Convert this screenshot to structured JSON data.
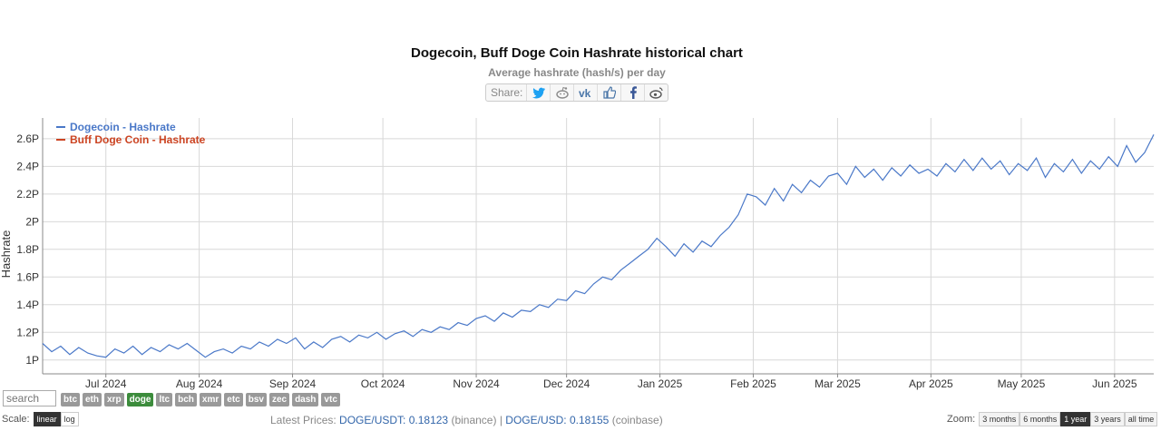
{
  "chart_data": {
    "type": "line",
    "title": "Dogecoin, Buff Doge Coin Hashrate historical chart",
    "subtitle": "Average hashrate (hash/s) per day",
    "ylabel": "Hashrate",
    "xlabel": "",
    "x_range": [
      "2024-06-10",
      "2025-06-14"
    ],
    "ylim": [
      0.9,
      2.75
    ],
    "y_ticks": [
      "1P",
      "1.2P",
      "1.4P",
      "1.6P",
      "1.8P",
      "2P",
      "2.2P",
      "2.4P",
      "2.6P"
    ],
    "y_tick_values": [
      1.0,
      1.2,
      1.4,
      1.6,
      1.8,
      2.0,
      2.2,
      2.4,
      2.6
    ],
    "x_ticks": [
      {
        "label": "Jul 2024",
        "date": "2024-07-01"
      },
      {
        "label": "Aug 2024",
        "date": "2024-08-01"
      },
      {
        "label": "Sep 2024",
        "date": "2024-09-01"
      },
      {
        "label": "Oct 2024",
        "date": "2024-10-01"
      },
      {
        "label": "Nov 2024",
        "date": "2024-11-01"
      },
      {
        "label": "Dec 2024",
        "date": "2024-12-01"
      },
      {
        "label": "Jan 2025",
        "date": "2025-01-01"
      },
      {
        "label": "Feb 2025",
        "date": "2025-02-01"
      },
      {
        "label": "Mar 2025",
        "date": "2025-03-01"
      },
      {
        "label": "Apr 2025",
        "date": "2025-04-01"
      },
      {
        "label": "May 2025",
        "date": "2025-05-01"
      },
      {
        "label": "Jun 2025",
        "date": "2025-06-01"
      }
    ],
    "grid": true,
    "legend_position": "top-left",
    "series": [
      {
        "name": "Dogecoin - Hashrate",
        "color": "#4a78c8",
        "points": [
          [
            "2024-06-10",
            1.12
          ],
          [
            "2024-06-13",
            1.06
          ],
          [
            "2024-06-16",
            1.1
          ],
          [
            "2024-06-19",
            1.04
          ],
          [
            "2024-06-22",
            1.09
          ],
          [
            "2024-06-25",
            1.05
          ],
          [
            "2024-06-28",
            1.03
          ],
          [
            "2024-07-01",
            1.02
          ],
          [
            "2024-07-04",
            1.08
          ],
          [
            "2024-07-07",
            1.05
          ],
          [
            "2024-07-10",
            1.1
          ],
          [
            "2024-07-13",
            1.04
          ],
          [
            "2024-07-16",
            1.09
          ],
          [
            "2024-07-19",
            1.06
          ],
          [
            "2024-07-22",
            1.11
          ],
          [
            "2024-07-25",
            1.08
          ],
          [
            "2024-07-28",
            1.12
          ],
          [
            "2024-07-31",
            1.07
          ],
          [
            "2024-08-03",
            1.02
          ],
          [
            "2024-08-06",
            1.06
          ],
          [
            "2024-08-09",
            1.08
          ],
          [
            "2024-08-12",
            1.05
          ],
          [
            "2024-08-15",
            1.1
          ],
          [
            "2024-08-18",
            1.08
          ],
          [
            "2024-08-21",
            1.13
          ],
          [
            "2024-08-24",
            1.1
          ],
          [
            "2024-08-27",
            1.15
          ],
          [
            "2024-08-30",
            1.12
          ],
          [
            "2024-09-02",
            1.16
          ],
          [
            "2024-09-05",
            1.08
          ],
          [
            "2024-09-08",
            1.13
          ],
          [
            "2024-09-11",
            1.09
          ],
          [
            "2024-09-14",
            1.15
          ],
          [
            "2024-09-17",
            1.17
          ],
          [
            "2024-09-20",
            1.13
          ],
          [
            "2024-09-23",
            1.18
          ],
          [
            "2024-09-26",
            1.16
          ],
          [
            "2024-09-29",
            1.2
          ],
          [
            "2024-10-02",
            1.15
          ],
          [
            "2024-10-05",
            1.19
          ],
          [
            "2024-10-08",
            1.21
          ],
          [
            "2024-10-11",
            1.17
          ],
          [
            "2024-10-14",
            1.22
          ],
          [
            "2024-10-17",
            1.2
          ],
          [
            "2024-10-20",
            1.24
          ],
          [
            "2024-10-23",
            1.22
          ],
          [
            "2024-10-26",
            1.27
          ],
          [
            "2024-10-29",
            1.25
          ],
          [
            "2024-11-01",
            1.3
          ],
          [
            "2024-11-04",
            1.32
          ],
          [
            "2024-11-07",
            1.28
          ],
          [
            "2024-11-10",
            1.34
          ],
          [
            "2024-11-13",
            1.31
          ],
          [
            "2024-11-16",
            1.36
          ],
          [
            "2024-11-19",
            1.35
          ],
          [
            "2024-11-22",
            1.4
          ],
          [
            "2024-11-25",
            1.38
          ],
          [
            "2024-11-28",
            1.44
          ],
          [
            "2024-12-01",
            1.43
          ],
          [
            "2024-12-04",
            1.5
          ],
          [
            "2024-12-07",
            1.48
          ],
          [
            "2024-12-10",
            1.55
          ],
          [
            "2024-12-13",
            1.6
          ],
          [
            "2024-12-16",
            1.58
          ],
          [
            "2024-12-19",
            1.65
          ],
          [
            "2024-12-22",
            1.7
          ],
          [
            "2024-12-25",
            1.75
          ],
          [
            "2024-12-28",
            1.8
          ],
          [
            "2024-12-31",
            1.88
          ],
          [
            "2025-01-03",
            1.82
          ],
          [
            "2025-01-06",
            1.75
          ],
          [
            "2025-01-09",
            1.84
          ],
          [
            "2025-01-12",
            1.78
          ],
          [
            "2025-01-15",
            1.86
          ],
          [
            "2025-01-18",
            1.82
          ],
          [
            "2025-01-21",
            1.9
          ],
          [
            "2025-01-24",
            1.96
          ],
          [
            "2025-01-27",
            2.05
          ],
          [
            "2025-01-30",
            2.2
          ],
          [
            "2025-02-02",
            2.18
          ],
          [
            "2025-02-05",
            2.12
          ],
          [
            "2025-02-08",
            2.24
          ],
          [
            "2025-02-11",
            2.15
          ],
          [
            "2025-02-14",
            2.27
          ],
          [
            "2025-02-17",
            2.21
          ],
          [
            "2025-02-20",
            2.3
          ],
          [
            "2025-02-23",
            2.25
          ],
          [
            "2025-02-26",
            2.33
          ],
          [
            "2025-03-01",
            2.35
          ],
          [
            "2025-03-04",
            2.27
          ],
          [
            "2025-03-07",
            2.4
          ],
          [
            "2025-03-10",
            2.32
          ],
          [
            "2025-03-13",
            2.38
          ],
          [
            "2025-03-16",
            2.3
          ],
          [
            "2025-03-19",
            2.39
          ],
          [
            "2025-03-22",
            2.33
          ],
          [
            "2025-03-25",
            2.41
          ],
          [
            "2025-03-28",
            2.35
          ],
          [
            "2025-03-31",
            2.38
          ],
          [
            "2025-04-03",
            2.33
          ],
          [
            "2025-04-06",
            2.42
          ],
          [
            "2025-04-09",
            2.36
          ],
          [
            "2025-04-12",
            2.45
          ],
          [
            "2025-04-15",
            2.37
          ],
          [
            "2025-04-18",
            2.46
          ],
          [
            "2025-04-21",
            2.38
          ],
          [
            "2025-04-24",
            2.44
          ],
          [
            "2025-04-27",
            2.34
          ],
          [
            "2025-04-30",
            2.42
          ],
          [
            "2025-05-03",
            2.37
          ],
          [
            "2025-05-06",
            2.46
          ],
          [
            "2025-05-09",
            2.32
          ],
          [
            "2025-05-12",
            2.42
          ],
          [
            "2025-05-15",
            2.36
          ],
          [
            "2025-05-18",
            2.45
          ],
          [
            "2025-05-21",
            2.35
          ],
          [
            "2025-05-24",
            2.44
          ],
          [
            "2025-05-27",
            2.38
          ],
          [
            "2025-05-30",
            2.47
          ],
          [
            "2025-06-02",
            2.4
          ],
          [
            "2025-06-05",
            2.55
          ],
          [
            "2025-06-08",
            2.43
          ],
          [
            "2025-06-11",
            2.5
          ],
          [
            "2025-06-14",
            2.63
          ]
        ]
      },
      {
        "name": "Buff Doge Coin - Hashrate",
        "color": "#cc4422",
        "points": []
      }
    ]
  },
  "share": {
    "label": "Share:",
    "buttons": [
      {
        "icon": "twitter-icon",
        "color": "#1da1f2"
      },
      {
        "icon": "reddit-icon",
        "color": "#888888"
      },
      {
        "icon": "vk-icon",
        "color": "#4a76a8"
      },
      {
        "icon": "like-icon",
        "color": "#4a76a8"
      },
      {
        "icon": "facebook-icon",
        "color": "#3b5998"
      },
      {
        "icon": "weibo-icon",
        "color": "#555555"
      }
    ]
  },
  "search": {
    "placeholder": "search"
  },
  "coins": [
    {
      "label": "btc",
      "active": false
    },
    {
      "label": "eth",
      "active": false
    },
    {
      "label": "xrp",
      "active": false
    },
    {
      "label": "doge",
      "active": true
    },
    {
      "label": "ltc",
      "active": false
    },
    {
      "label": "bch",
      "active": false
    },
    {
      "label": "xmr",
      "active": false
    },
    {
      "label": "etc",
      "active": false
    },
    {
      "label": "bsv",
      "active": false
    },
    {
      "label": "zec",
      "active": false
    },
    {
      "label": "dash",
      "active": false
    },
    {
      "label": "vtc",
      "active": false
    }
  ],
  "scale": {
    "label": "Scale:",
    "linear": "linear",
    "log": "log",
    "selected": "linear"
  },
  "prices": {
    "label": "Latest Prices:",
    "pair1": "DOGE/USDT: 0.18123",
    "src1": "(binance)",
    "sep": "|",
    "pair2": "DOGE/USD: 0.18155",
    "src2": "(coinbase)"
  },
  "zoom": {
    "label": "Zoom:",
    "options": [
      "3 months",
      "6 months",
      "1 year",
      "3 years",
      "all time"
    ],
    "selected": "1 year"
  }
}
